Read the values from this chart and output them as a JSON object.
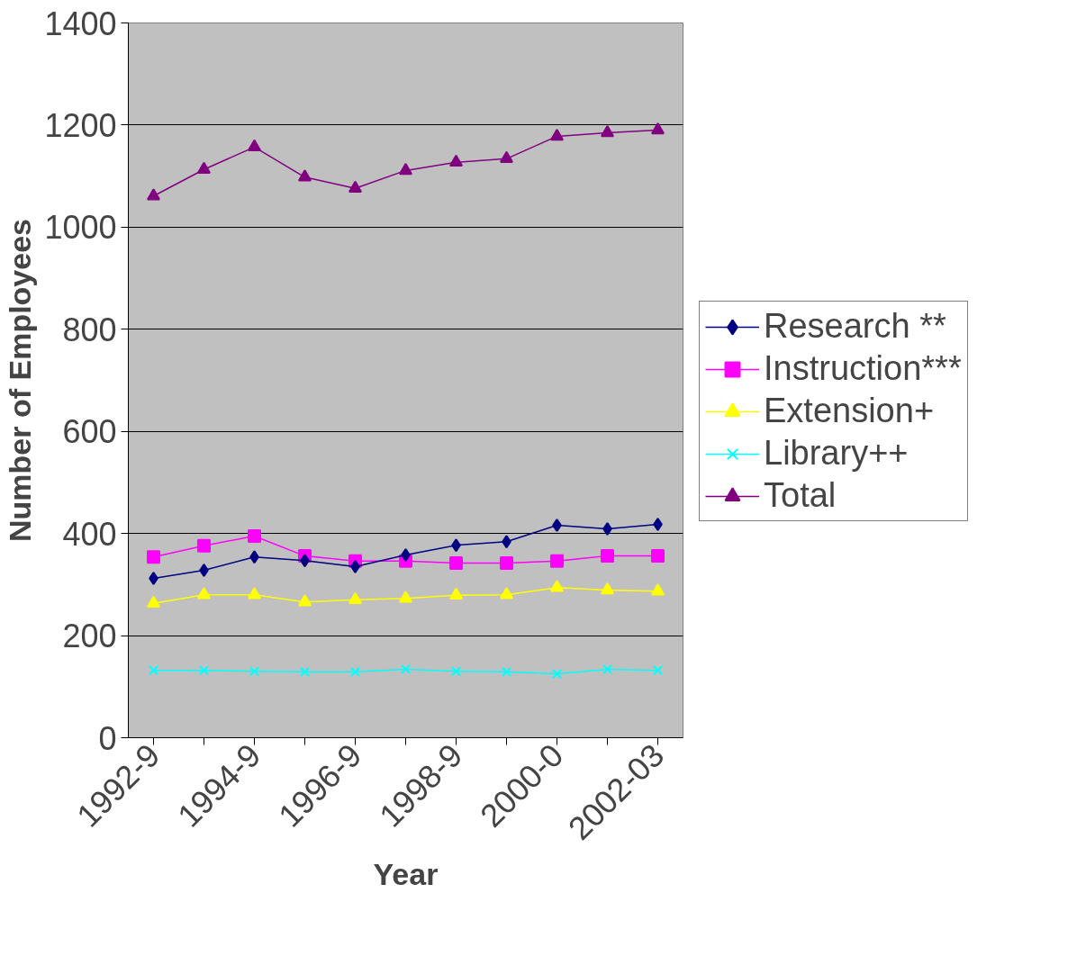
{
  "chart_data": {
    "type": "line",
    "xlabel": "Year",
    "ylabel": "Number of Employees",
    "categories": [
      "1992-9",
      null,
      "1994-9",
      null,
      "1996-9",
      null,
      "1998-9",
      null,
      "2000-0",
      null,
      "2002-03"
    ],
    "ylim": [
      0,
      1400
    ],
    "yticks": [
      0,
      200,
      400,
      600,
      800,
      1000,
      1200,
      1400
    ],
    "grid": "y",
    "legend": "right",
    "line_style": "solid",
    "series": [
      {
        "name": "Research **",
        "color": "#000080",
        "marker": "diamond",
        "values": [
          312,
          328,
          354,
          347,
          335,
          358,
          377,
          384,
          416,
          409,
          418
        ]
      },
      {
        "name": "Instruction***",
        "color": "#ff00ff",
        "marker": "square",
        "values": [
          354,
          376,
          395,
          356,
          346,
          346,
          342,
          342,
          346,
          356,
          356
        ]
      },
      {
        "name": "Extension+",
        "color": "#ffff00",
        "marker": "triangle",
        "values": [
          263,
          280,
          280,
          266,
          270,
          273,
          279,
          280,
          294,
          289,
          287
        ]
      },
      {
        "name": "Library++",
        "color": "#00ffff",
        "marker": "cross",
        "values": [
          132,
          132,
          130,
          129,
          129,
          134,
          130,
          129,
          125,
          134,
          132
        ]
      },
      {
        "name": "Total",
        "color": "#800080",
        "marker": "triangle",
        "values": [
          1061,
          1113,
          1157,
          1098,
          1076,
          1111,
          1127,
          1134,
          1178,
          1185,
          1190
        ]
      }
    ]
  }
}
